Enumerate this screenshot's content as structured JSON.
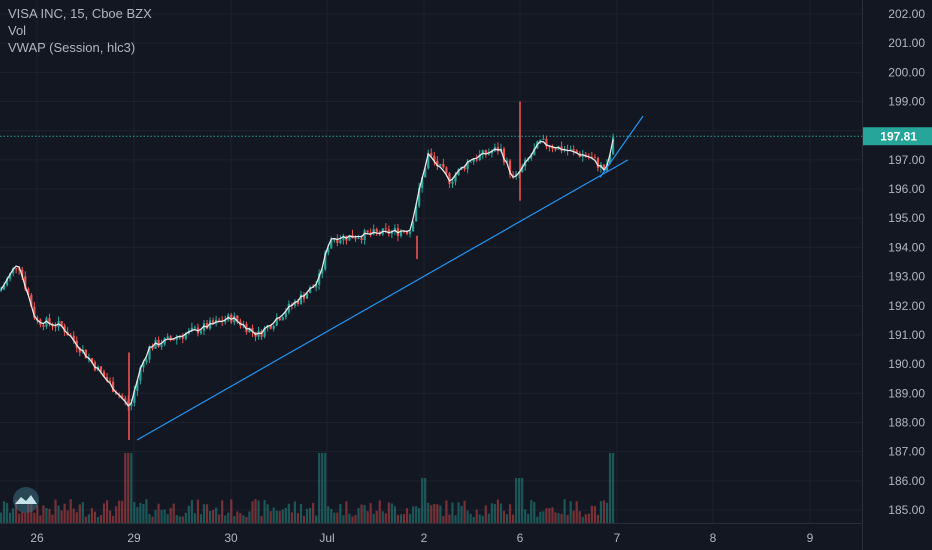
{
  "legend": {
    "symbol": "VISA INC, 15, Cboe BZX",
    "volume": "Vol",
    "vwap": "VWAP (Session, hlc3)"
  },
  "price_axis": {
    "labels": [
      "202.00",
      "201.00",
      "200.00",
      "199.00",
      "197.00",
      "196.00",
      "195.00",
      "194.00",
      "193.00",
      "192.00",
      "191.00",
      "190.00",
      "189.00",
      "188.00",
      "187.00",
      "186.00",
      "185.00"
    ],
    "current_price": "197.81"
  },
  "time_axis": {
    "labels": [
      "26",
      "29",
      "30",
      "Jul",
      "2",
      "6",
      "7",
      "8",
      "9"
    ]
  },
  "colors": {
    "background": "#131722",
    "up": "#26a69a",
    "down": "#ef5350",
    "vwap": "#e8e8e8",
    "trendline": "#2196f3",
    "price_tag": "#26a69a"
  },
  "chart_data": {
    "type": "candlestick",
    "ylim": [
      184.7,
      202.3
    ],
    "current_price": 197.81,
    "trendlines": [
      {
        "x": [
          "29",
          "7"
        ],
        "y": [
          187.4,
          197.0
        ]
      },
      {
        "x": [
          "7",
          "7"
        ],
        "y": [
          196.4,
          198.5
        ]
      }
    ],
    "anchors": [
      {
        "x": "26",
        "y": 192.5
      },
      {
        "x": "26",
        "y": 193.5
      },
      {
        "x": "26",
        "y": 191.5
      },
      {
        "x": "29",
        "y": 191.3
      },
      {
        "x": "29",
        "y": 188.5
      },
      {
        "x": "29",
        "y": 189.8
      },
      {
        "x": "29",
        "y": 190.6
      },
      {
        "x": "30",
        "y": 191.6
      },
      {
        "x": "30",
        "y": 191.0
      },
      {
        "x": "Jul",
        "y": 192.8
      },
      {
        "x": "Jul",
        "y": 194.3
      },
      {
        "x": "Jul",
        "y": 194.6
      },
      {
        "x": "2",
        "y": 197.2
      },
      {
        "x": "2",
        "y": 196.3
      },
      {
        "x": "2",
        "y": 197.0
      },
      {
        "x": "6",
        "y": 197.4
      },
      {
        "x": "6",
        "y": 196.3
      },
      {
        "x": "6",
        "y": 197.6
      },
      {
        "x": "7",
        "y": 197.1
      },
      {
        "x": "7",
        "y": 196.6
      },
      {
        "x": "7",
        "y": 197.8
      }
    ]
  }
}
